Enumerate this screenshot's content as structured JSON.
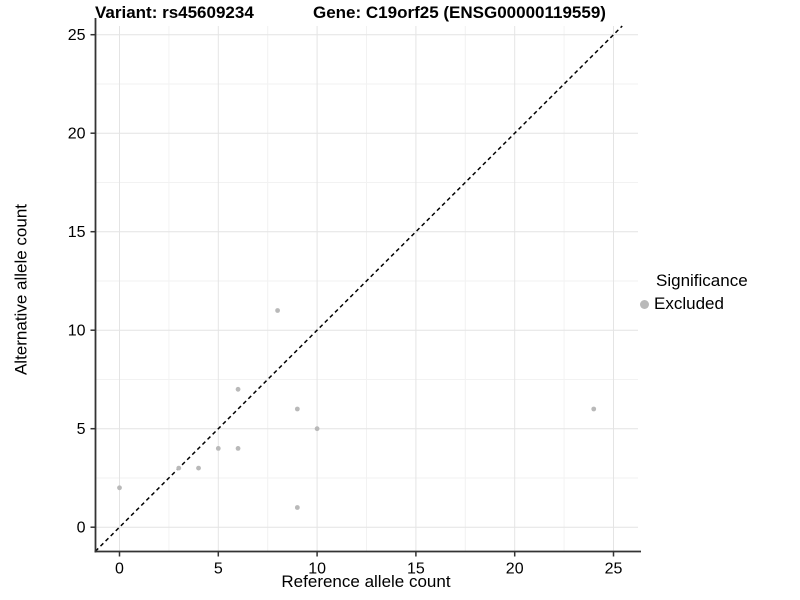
{
  "chart_data": {
    "type": "scatter",
    "title_left": "Variant: rs45609234",
    "title_right": "Gene: C19orf25 (ENSG00000119559)",
    "xlabel": "Reference allele count",
    "ylabel": "Alternative allele count",
    "xlim": [
      0,
      25
    ],
    "ylim": [
      0,
      25
    ],
    "x_ticks": [
      0,
      5,
      10,
      15,
      20,
      25
    ],
    "y_ticks": [
      0,
      5,
      10,
      15,
      20,
      25
    ],
    "x_minor_ticks": [
      2.5,
      7.5,
      12.5,
      17.5,
      22.5
    ],
    "y_minor_ticks": [
      2.5,
      7.5,
      12.5,
      17.5,
      22.5
    ],
    "grid": true,
    "series": [
      {
        "name": "Excluded",
        "color": "#b9b9b9",
        "points": [
          [
            0,
            2
          ],
          [
            3,
            3
          ],
          [
            4,
            3
          ],
          [
            5,
            4
          ],
          [
            6,
            4
          ],
          [
            6,
            7
          ],
          [
            8,
            11
          ],
          [
            9,
            1
          ],
          [
            9,
            6
          ],
          [
            10,
            5
          ],
          [
            24,
            6
          ]
        ]
      }
    ],
    "identity_line": {
      "equation": "y = x",
      "style": "dashed",
      "color": "#000000",
      "data_range": [
        -1.22,
        25.44
      ]
    },
    "legend": {
      "title": "Significance",
      "position": "right",
      "items": [
        {
          "label": "Excluded",
          "color": "#b9b9b9"
        }
      ]
    },
    "colors": {
      "background": "#ffffff",
      "point": "#b9b9b9",
      "grid_major": "#e4e4e4",
      "grid_minor": "#f2f2f2",
      "axis_line": "#333333",
      "tick": "#333333",
      "text": "#000000"
    }
  }
}
